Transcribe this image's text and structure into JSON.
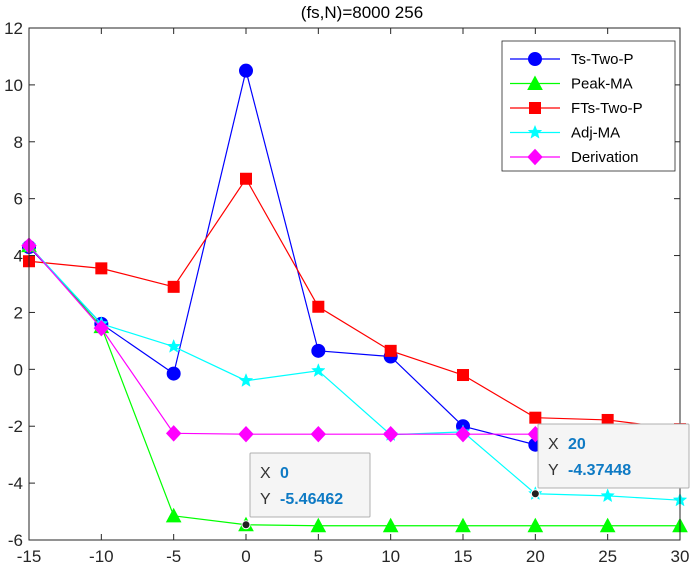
{
  "chart_data": {
    "type": "line",
    "title": "(fs,N)=8000   256",
    "xlabel": "",
    "ylabel": "",
    "xlim": [
      -15,
      30
    ],
    "ylim": [
      -6,
      12
    ],
    "xticks": [
      -15,
      -10,
      -5,
      0,
      5,
      10,
      15,
      20,
      25,
      30
    ],
    "yticks": [
      -6,
      -4,
      -2,
      0,
      2,
      4,
      6,
      8,
      10,
      12
    ],
    "x": [
      -15,
      -10,
      -5,
      0,
      5,
      10,
      15,
      20,
      25,
      30
    ],
    "grid": false,
    "legend_position": "top-right",
    "series": [
      {
        "name": "Ts-Two-P",
        "color": "#0000ff",
        "marker": "circle",
        "values": [
          4.3,
          1.6,
          -0.15,
          10.5,
          0.65,
          0.45,
          -2.0,
          -2.65,
          -2.5,
          -2.95
        ]
      },
      {
        "name": "Peak-MA",
        "color": "#00ff00",
        "marker": "triangle",
        "values": [
          4.35,
          1.5,
          -5.15,
          -5.46462,
          -5.5,
          -5.5,
          -5.5,
          -5.5,
          -5.5,
          -5.5
        ]
      },
      {
        "name": "FTs-Two-P",
        "color": "#ff0000",
        "marker": "square",
        "values": [
          3.8,
          3.55,
          2.9,
          6.7,
          2.2,
          0.65,
          -0.2,
          -1.7,
          -1.78,
          -2.1
        ]
      },
      {
        "name": "Adj-MA",
        "color": "#00ffff",
        "marker": "star",
        "values": [
          4.35,
          1.6,
          0.8,
          -0.4,
          -0.05,
          -2.3,
          -2.2,
          -4.37448,
          -4.45,
          -4.6
        ]
      },
      {
        "name": "Derivation",
        "color": "#ff00ff",
        "marker": "diamond",
        "values": [
          4.35,
          1.45,
          -2.25,
          -2.28,
          -2.28,
          -2.28,
          -2.28,
          -2.28,
          -2.28,
          -2.28
        ]
      }
    ],
    "datatips": [
      {
        "x_label": "X",
        "x_value": "0",
        "y_label": "Y",
        "y_value": "-5.46462",
        "point": [
          0,
          -5.46462
        ]
      },
      {
        "x_label": "X",
        "x_value": "20",
        "y_label": "Y",
        "y_value": "-4.37448",
        "point": [
          20,
          -4.37448
        ]
      }
    ]
  },
  "colors": {
    "axis": "#262626",
    "datatip_value": "#0e7ac4",
    "datatip_bg": "#f5f5f5",
    "datatip_border": "#b0b0b0"
  }
}
